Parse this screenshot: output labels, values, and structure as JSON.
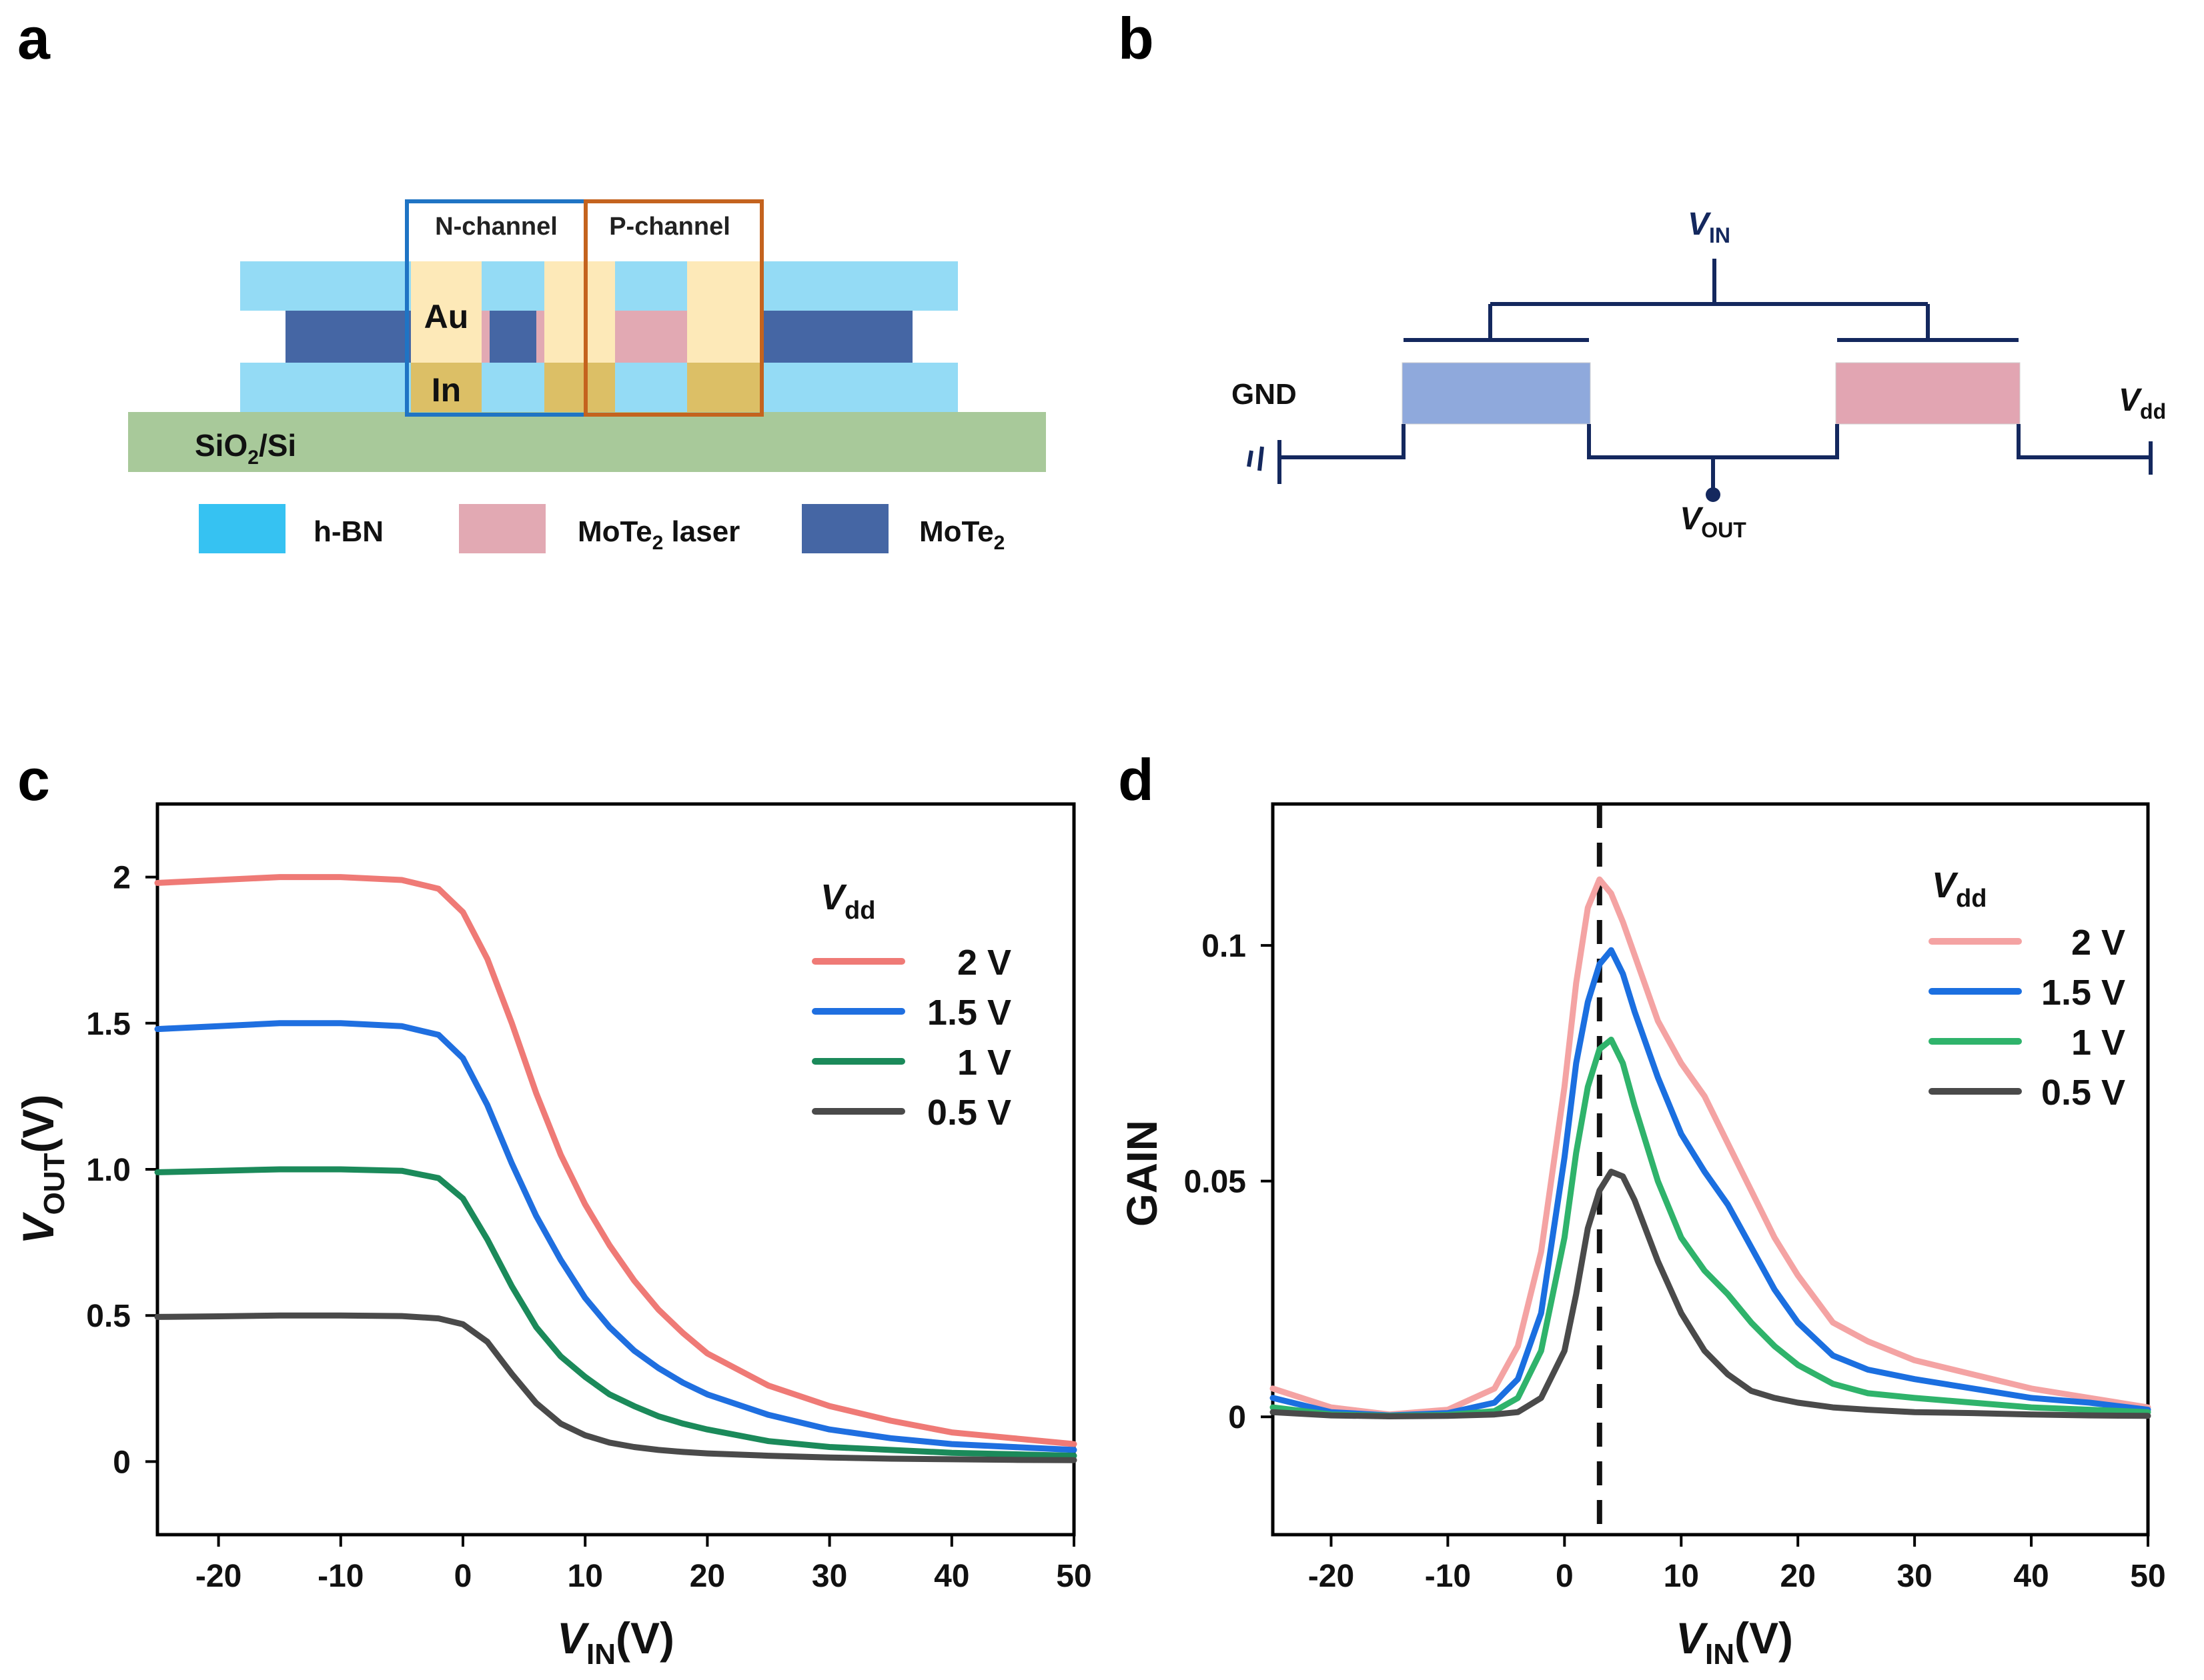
{
  "panels": {
    "a": "a",
    "b": "b",
    "c": "c",
    "d": "d"
  },
  "device": {
    "n_channel": "N-channel",
    "p_channel": "P-channel",
    "au": "Au",
    "in": "In",
    "substrate": "SiO",
    "substrate_sub": "2",
    "substrate_tail": "/Si",
    "legend": [
      {
        "label": "h-BN",
        "label_sub": "",
        "label_tail": "",
        "color": "#36c2f2"
      },
      {
        "label": "MoTe",
        "label_sub": "2",
        "label_tail": " laser",
        "color": "#e2a9b3"
      },
      {
        "label": "MoTe",
        "label_sub": "2",
        "label_tail": "",
        "color": "#4566a4"
      }
    ],
    "colors": {
      "hbn": "#94dbf5",
      "mote2": "#4566a4",
      "mote2_laser": "#e2a9b3",
      "au": "#fde9b8",
      "in": "#dcbf66",
      "substrate": "#a8c99a",
      "n_box": "#1f74c4",
      "p_box": "#c4631e"
    }
  },
  "circuit": {
    "vin": "V",
    "vin_sub": "IN",
    "gnd": "GND",
    "vdd": "V",
    "vdd_sub": "dd",
    "vout": "V",
    "vout_sub": "OUT",
    "colors": {
      "wire": "#14285e",
      "n_block": "#8fa9dc",
      "p_block": "#e2a5b2"
    }
  },
  "chart_data": [
    {
      "panel": "c",
      "type": "line",
      "xlabel": "V",
      "xlabel_sub": "IN",
      "xlabel_tail": "(V)",
      "ylabel": "V",
      "ylabel_sub": "OUT",
      "ylabel_tail": "(V)",
      "xlim": [
        -25,
        50
      ],
      "ylim": [
        -0.25,
        2.25
      ],
      "xticks": [
        -20,
        -10,
        0,
        10,
        20,
        30,
        40,
        50
      ],
      "xtick_labels": [
        "-20",
        "-10",
        "0",
        "10",
        "20",
        "30",
        "40",
        "50"
      ],
      "yticks": [
        0,
        0.5,
        1.0,
        1.5,
        2
      ],
      "ytick_labels": [
        "0",
        "0.5",
        "1.0",
        "1.5",
        "2"
      ],
      "legend_title": "V",
      "legend_title_sub": "dd",
      "series": [
        {
          "name": "2 V",
          "color": "#ef7a76",
          "x": [
            -25,
            -20,
            -15,
            -10,
            -5,
            -2,
            0,
            2,
            4,
            6,
            8,
            10,
            12,
            14,
            16,
            18,
            20,
            25,
            30,
            35,
            40,
            45,
            50
          ],
          "y": [
            1.98,
            1.99,
            2.0,
            2.0,
            1.99,
            1.96,
            1.88,
            1.72,
            1.5,
            1.26,
            1.05,
            0.88,
            0.74,
            0.62,
            0.52,
            0.44,
            0.37,
            0.26,
            0.19,
            0.14,
            0.1,
            0.08,
            0.06
          ]
        },
        {
          "name": "1.5 V",
          "color": "#1f6fe0",
          "x": [
            -25,
            -20,
            -15,
            -10,
            -5,
            -2,
            0,
            2,
            4,
            6,
            8,
            10,
            12,
            14,
            16,
            18,
            20,
            25,
            30,
            35,
            40,
            45,
            50
          ],
          "y": [
            1.48,
            1.49,
            1.5,
            1.5,
            1.49,
            1.46,
            1.38,
            1.22,
            1.02,
            0.84,
            0.69,
            0.56,
            0.46,
            0.38,
            0.32,
            0.27,
            0.23,
            0.16,
            0.11,
            0.08,
            0.06,
            0.05,
            0.04
          ]
        },
        {
          "name": "1 V",
          "color": "#1b8a5a",
          "x": [
            -25,
            -20,
            -15,
            -10,
            -5,
            -2,
            0,
            2,
            4,
            6,
            8,
            10,
            12,
            14,
            16,
            18,
            20,
            25,
            30,
            35,
            40,
            45,
            50
          ],
          "y": [
            0.99,
            0.995,
            1.0,
            1.0,
            0.995,
            0.97,
            0.9,
            0.76,
            0.6,
            0.46,
            0.36,
            0.29,
            0.23,
            0.19,
            0.155,
            0.13,
            0.11,
            0.07,
            0.05,
            0.04,
            0.03,
            0.025,
            0.02
          ]
        },
        {
          "name": "0.5 V",
          "color": "#4a4a4a",
          "x": [
            -25,
            -20,
            -15,
            -10,
            -5,
            -2,
            0,
            2,
            4,
            6,
            8,
            10,
            12,
            14,
            16,
            18,
            20,
            25,
            30,
            35,
            40,
            45,
            50
          ],
          "y": [
            0.495,
            0.497,
            0.5,
            0.5,
            0.498,
            0.49,
            0.47,
            0.41,
            0.3,
            0.2,
            0.13,
            0.09,
            0.065,
            0.05,
            0.04,
            0.033,
            0.028,
            0.02,
            0.014,
            0.01,
            0.008,
            0.006,
            0.005
          ]
        }
      ]
    },
    {
      "panel": "d",
      "type": "line",
      "xlabel": "V",
      "xlabel_sub": "IN",
      "xlabel_tail": "(V)",
      "ylabel": "GAIN",
      "xlim": [
        -25,
        50
      ],
      "ylim": [
        -0.025,
        0.13
      ],
      "xticks": [
        -20,
        -10,
        0,
        10,
        20,
        30,
        40,
        50
      ],
      "xtick_labels": [
        "-20",
        "-10",
        "0",
        "10",
        "20",
        "30",
        "40",
        "50"
      ],
      "yticks": [
        0,
        0.05,
        0.1
      ],
      "ytick_labels": [
        "0",
        "0.05",
        "0.1"
      ],
      "vline_x": 3,
      "legend_title": "V",
      "legend_title_sub": "dd",
      "series": [
        {
          "name": "2 V",
          "color": "#f4a3a3",
          "x": [
            -25,
            -20,
            -15,
            -10,
            -6,
            -4,
            -2,
            0,
            1,
            2,
            3,
            4,
            5,
            6,
            8,
            10,
            12,
            14,
            16,
            18,
            20,
            23,
            26,
            30,
            35,
            40,
            45,
            50
          ],
          "y": [
            0.006,
            0.002,
            0.0005,
            0.0015,
            0.006,
            0.015,
            0.035,
            0.07,
            0.092,
            0.108,
            0.114,
            0.111,
            0.105,
            0.098,
            0.084,
            0.075,
            0.068,
            0.058,
            0.048,
            0.038,
            0.03,
            0.02,
            0.016,
            0.012,
            0.009,
            0.006,
            0.004,
            0.002
          ]
        },
        {
          "name": "1.5 V",
          "color": "#1b6fe0",
          "x": [
            -25,
            -20,
            -15,
            -10,
            -6,
            -4,
            -2,
            0,
            1,
            2,
            3,
            4,
            5,
            6,
            8,
            10,
            12,
            14,
            16,
            18,
            20,
            23,
            26,
            30,
            35,
            40,
            45,
            50
          ],
          "y": [
            0.004,
            0.001,
            0.0003,
            0.0008,
            0.003,
            0.008,
            0.022,
            0.055,
            0.075,
            0.088,
            0.096,
            0.099,
            0.094,
            0.086,
            0.072,
            0.06,
            0.052,
            0.045,
            0.036,
            0.027,
            0.02,
            0.013,
            0.01,
            0.008,
            0.006,
            0.004,
            0.003,
            0.0015
          ]
        },
        {
          "name": "1 V",
          "color": "#2fb36b",
          "x": [
            -25,
            -20,
            -15,
            -10,
            -6,
            -4,
            -2,
            0,
            1,
            2,
            3,
            4,
            5,
            6,
            8,
            10,
            12,
            14,
            16,
            18,
            20,
            23,
            26,
            30,
            35,
            40,
            45,
            50
          ],
          "y": [
            0.002,
            0.0005,
            0.0002,
            0.0004,
            0.0012,
            0.004,
            0.014,
            0.038,
            0.056,
            0.07,
            0.078,
            0.08,
            0.075,
            0.066,
            0.05,
            0.038,
            0.031,
            0.026,
            0.02,
            0.015,
            0.011,
            0.007,
            0.005,
            0.004,
            0.003,
            0.002,
            0.0015,
            0.001
          ]
        },
        {
          "name": "0.5 V",
          "color": "#4a4a4a",
          "x": [
            -25,
            -20,
            -15,
            -10,
            -6,
            -4,
            -2,
            0,
            1,
            2,
            3,
            4,
            5,
            6,
            8,
            10,
            12,
            14,
            16,
            18,
            20,
            23,
            26,
            30,
            35,
            40,
            45,
            50
          ],
          "y": [
            0.001,
            0.0003,
            0.0001,
            0.0002,
            0.0005,
            0.001,
            0.004,
            0.014,
            0.026,
            0.04,
            0.048,
            0.052,
            0.051,
            0.046,
            0.033,
            0.022,
            0.014,
            0.009,
            0.0055,
            0.004,
            0.003,
            0.002,
            0.0015,
            0.001,
            0.0008,
            0.0005,
            0.0003,
            0.0002
          ]
        }
      ]
    }
  ]
}
